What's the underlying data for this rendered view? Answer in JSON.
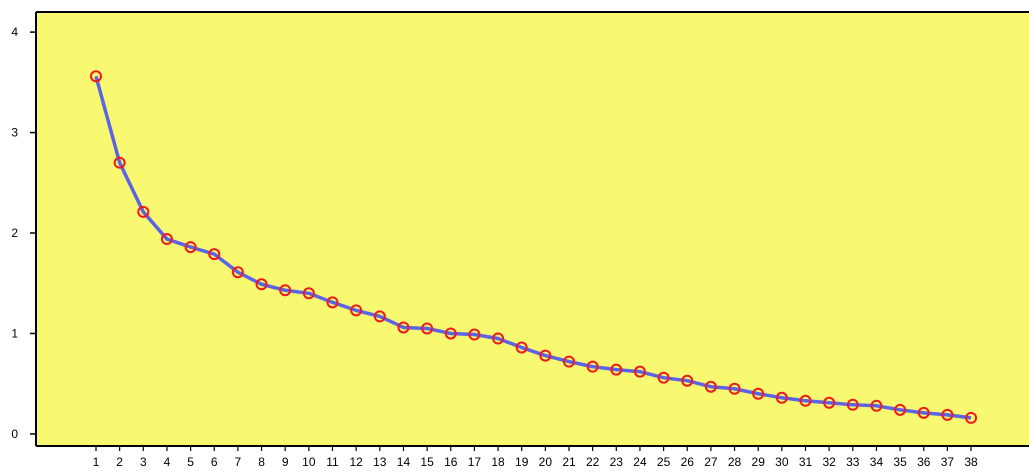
{
  "chart_data": {
    "type": "line",
    "title": "",
    "xlabel": "",
    "ylabel": "",
    "x": [
      1,
      2,
      3,
      4,
      5,
      6,
      7,
      8,
      9,
      10,
      11,
      12,
      13,
      14,
      15,
      16,
      17,
      18,
      19,
      20,
      21,
      22,
      23,
      24,
      25,
      26,
      27,
      28,
      29,
      30,
      31,
      32,
      33,
      34,
      35,
      36,
      37,
      38
    ],
    "series": [
      {
        "values": [
          3.56,
          2.7,
          2.21,
          1.94,
          1.86,
          1.79,
          1.61,
          1.49,
          1.43,
          1.4,
          1.31,
          1.23,
          1.17,
          1.06,
          1.05,
          1.0,
          0.99,
          0.95,
          0.86,
          0.78,
          0.72,
          0.67,
          0.64,
          0.62,
          0.56,
          0.53,
          0.47,
          0.45,
          0.4,
          0.36,
          0.33,
          0.31,
          0.29,
          0.28,
          0.24,
          0.21,
          0.19,
          0.16
        ]
      }
    ],
    "yticks": [
      "0",
      "1",
      "2",
      "3",
      "4"
    ],
    "ylim": [
      -0.12,
      4.2
    ],
    "grid": false,
    "legend": "none",
    "colors": {
      "plot_background": "#f9f871",
      "line": "#5b63e6",
      "marker_stroke": "#ef1a1a",
      "axis": "#000000"
    }
  }
}
